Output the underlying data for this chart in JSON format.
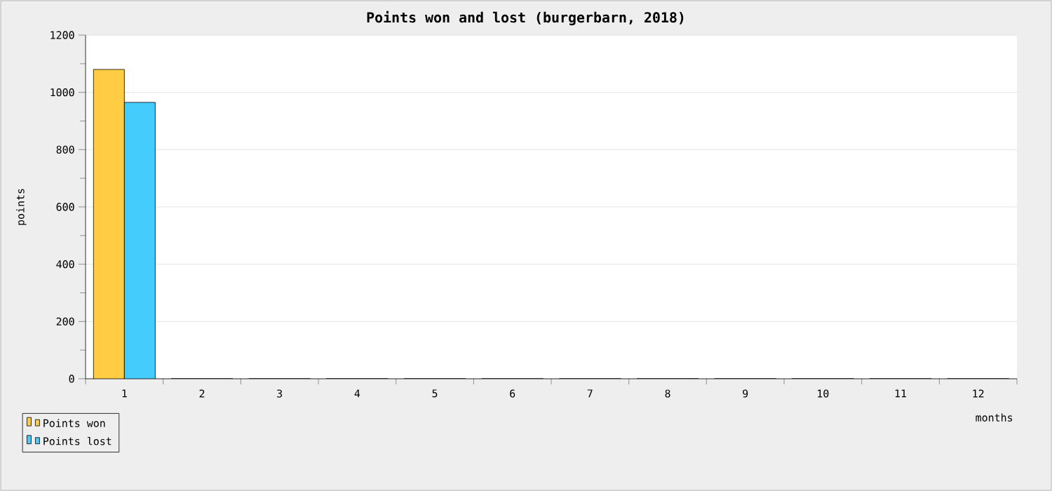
{
  "chart_data": {
    "type": "bar",
    "title": "Points won and lost (burgerbarn, 2018)",
    "xlabel": "months",
    "ylabel": "points",
    "categories": [
      "1",
      "2",
      "3",
      "4",
      "5",
      "6",
      "7",
      "8",
      "9",
      "10",
      "11",
      "12"
    ],
    "series": [
      {
        "name": "Points won",
        "color": "#ffcc44",
        "values": [
          1080,
          0,
          0,
          0,
          0,
          0,
          0,
          0,
          0,
          0,
          0,
          0
        ]
      },
      {
        "name": "Points lost",
        "color": "#44ccff",
        "values": [
          965,
          0,
          0,
          0,
          0,
          0,
          0,
          0,
          0,
          0,
          0,
          0
        ]
      }
    ],
    "ylim": [
      0,
      1200
    ],
    "yticks": [
      0,
      200,
      400,
      600,
      800,
      1000,
      1200
    ],
    "grid": "y",
    "legend": "bottom left"
  }
}
